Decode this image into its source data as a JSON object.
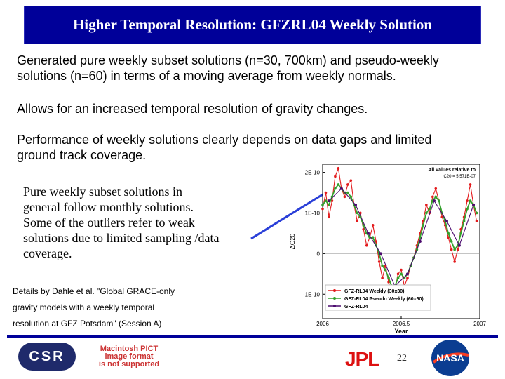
{
  "slide": {
    "title": "Higher Temporal Resolution: GFZRL04 Weekly Solution",
    "bullet1": "Generated pure weekly subset solutions (n=30, 700km) and pseudo-weekly\nsolutions (n=60) in terms of a moving average from weekly normals.",
    "bullet2": "Allows for an increased temporal resolution of gravity changes.",
    "bullet3": "Performance of weekly solutions clearly depends on data gaps and limited\nground track coverage.",
    "note": "Pure weekly subset solutions in\ngeneral follow monthly solutions.\nSome of the outliers refer to weak\nsolutions due to limited sampling /data\ncoverage.",
    "details": "Details by Dahle et al. \"Global GRACE-only\ngravity models with a weekly temporal\nresolution at GFZ Potsdam\" (Session A)"
  },
  "footer": {
    "csr_logo": "CSR",
    "pict_notice": "Macintosh PICT\nimage format\nis not supported",
    "jpl_logo": "JPL",
    "page_number": "22",
    "nasa_logo": "NASA"
  },
  "chart_data": {
    "type": "line",
    "annotation": "All values relative to",
    "annotation2": "C20 = 5.571E-07",
    "xlabel": "Year",
    "ylabel": "ΔC20",
    "xlim": [
      2006,
      2007
    ],
    "ylim": [
      -1.6e-10,
      2.2e-10
    ],
    "xticks": [
      "2006",
      "2006.5",
      "2007"
    ],
    "yticks": [
      "2E-10",
      "1E-10",
      "0",
      "-1E-10"
    ],
    "ytick_values": [
      2e-10,
      1e-10,
      0,
      -1e-10
    ],
    "legend_position": "bottom-left",
    "series": [
      {
        "name": "GFZ-RL04 Weekly (30x30)",
        "color": "#e31a1c",
        "x": [
          2006.0,
          2006.02,
          2006.04,
          2006.06,
          2006.08,
          2006.1,
          2006.12,
          2006.14,
          2006.16,
          2006.18,
          2006.2,
          2006.22,
          2006.24,
          2006.26,
          2006.28,
          2006.3,
          2006.32,
          2006.34,
          2006.36,
          2006.38,
          2006.4,
          2006.42,
          2006.44,
          2006.46,
          2006.48,
          2006.5,
          2006.52,
          2006.54,
          2006.56,
          2006.58,
          2006.6,
          2006.62,
          2006.64,
          2006.66,
          2006.68,
          2006.7,
          2006.72,
          2006.74,
          2006.76,
          2006.78,
          2006.8,
          2006.82,
          2006.84,
          2006.86,
          2006.88,
          2006.9,
          2006.92,
          2006.94,
          2006.96,
          2006.98
        ],
        "values": [
          1.1e-10,
          1.5e-10,
          9e-11,
          1.3e-10,
          1.9e-10,
          2.1e-10,
          1.6e-10,
          1.4e-10,
          1.7e-10,
          1.8e-10,
          1.2e-10,
          8e-11,
          1e-10,
          6e-11,
          2e-11,
          4e-11,
          7e-11,
          3e-11,
          -2e-11,
          -6e-11,
          -3e-11,
          -7e-11,
          -1.1e-10,
          -9e-11,
          -5e-11,
          -4e-11,
          -8e-11,
          -6e-11,
          -3e-11,
          -1e-11,
          2e-11,
          5e-11,
          8e-11,
          1.2e-10,
          1e-10,
          1.4e-10,
          1.6e-10,
          1.3e-10,
          9e-11,
          7e-11,
          4e-11,
          1e-11,
          -2e-11,
          1e-11,
          6e-11,
          9e-11,
          1.3e-10,
          1.7e-10,
          1.2e-10,
          8e-11
        ]
      },
      {
        "name": "GFZ-RL04 Pseudo Weekly (60x60)",
        "color": "#33a02c",
        "x": [
          2006.0,
          2006.02,
          2006.04,
          2006.06,
          2006.08,
          2006.1,
          2006.12,
          2006.14,
          2006.16,
          2006.18,
          2006.2,
          2006.22,
          2006.24,
          2006.26,
          2006.28,
          2006.3,
          2006.32,
          2006.34,
          2006.36,
          2006.38,
          2006.4,
          2006.42,
          2006.44,
          2006.46,
          2006.48,
          2006.5,
          2006.52,
          2006.54,
          2006.56,
          2006.58,
          2006.6,
          2006.62,
          2006.64,
          2006.66,
          2006.68,
          2006.7,
          2006.72,
          2006.74,
          2006.76,
          2006.78,
          2006.8,
          2006.82,
          2006.84,
          2006.86,
          2006.88,
          2006.9,
          2006.92,
          2006.94,
          2006.96,
          2006.98
        ],
        "values": [
          1.2e-10,
          1.3e-10,
          1.2e-10,
          1.4e-10,
          1.6e-10,
          1.7e-10,
          1.6e-10,
          1.5e-10,
          1.5e-10,
          1.4e-10,
          1.2e-10,
          1e-10,
          9e-11,
          7e-11,
          5e-11,
          4e-11,
          4e-11,
          2e-11,
          0.0,
          -3e-11,
          -4e-11,
          -6e-11,
          -8e-11,
          -8e-11,
          -6e-11,
          -5e-11,
          -6e-11,
          -5e-11,
          -3e-11,
          -1e-11,
          1e-11,
          4e-11,
          7e-11,
          1e-10,
          1.1e-10,
          1.3e-10,
          1.4e-10,
          1.3e-10,
          1e-10,
          8e-11,
          5e-11,
          3e-11,
          1e-11,
          2e-11,
          5e-11,
          8e-11,
          1.1e-10,
          1.3e-10,
          1.2e-10,
          1e-10
        ]
      },
      {
        "name": "GFZ-RL04",
        "color": "#4b0b6e",
        "x": [
          2006.04,
          2006.12,
          2006.21,
          2006.29,
          2006.37,
          2006.46,
          2006.54,
          2006.62,
          2006.71,
          2006.79,
          2006.87,
          2006.96
        ],
        "values": [
          1.3e-10,
          1.6e-10,
          1.2e-10,
          5e-11,
          0.0,
          -8e-11,
          -5e-11,
          3e-11,
          1.3e-10,
          8e-11,
          2e-11,
          1.2e-10
        ]
      }
    ]
  }
}
